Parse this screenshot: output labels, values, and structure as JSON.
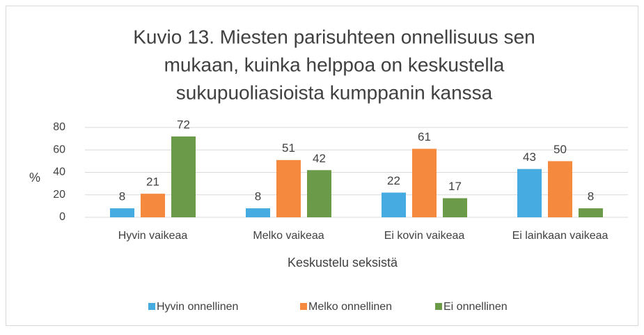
{
  "chart_data": {
    "type": "bar",
    "title_lines": [
      "Kuvio 13. Miesten parisuhteen onnellisuus sen",
      "mukaan, kuinka helppoa on keskustella",
      "sukupuoliasioista kumppanin kanssa"
    ],
    "categories": [
      "Hyvin vaikeaa",
      "Melko vaikeaa",
      "Ei kovin vaikeaa",
      "Ei lainkaan vaikeaa"
    ],
    "series": [
      {
        "name": "Hyvin onnellinen",
        "color": "#45abe0",
        "values": [
          8,
          8,
          22,
          43
        ]
      },
      {
        "name": "Melko onnellinen",
        "color": "#f58a3f",
        "values": [
          21,
          51,
          61,
          50
        ]
      },
      {
        "name": "Ei onnellinen",
        "color": "#6b9a48",
        "values": [
          72,
          42,
          17,
          8
        ]
      }
    ],
    "x_label": "Keskustelu seksistä",
    "y_label": "%",
    "ylim": [
      0,
      80
    ],
    "yticks": [
      0,
      20,
      40,
      60,
      80
    ],
    "grid": true,
    "legend": "bottom"
  }
}
